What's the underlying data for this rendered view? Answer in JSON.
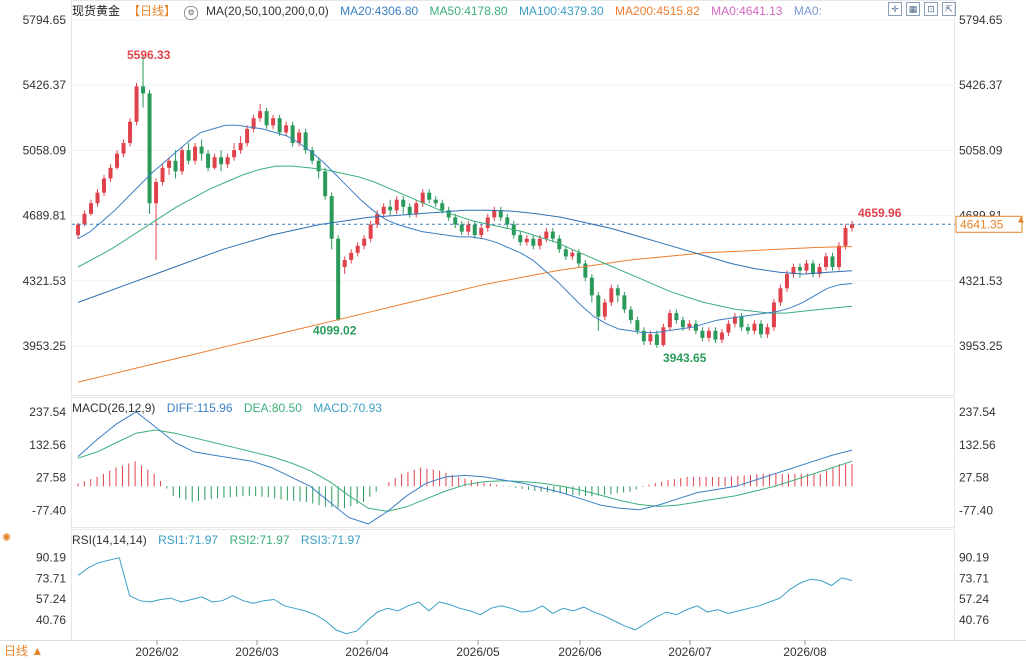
{
  "header": {
    "symbol": "现货黄金",
    "timeframe": "【日线】",
    "ma_params": "MA(20,50,100,200,0,0)",
    "ma20": "MA20:4306.80",
    "ma50": "MA50:4178.80",
    "ma100": "MA100:4379.30",
    "ma200": "MA200:4515.82",
    "ma0a": "MA0:4641.13",
    "ma0b": "MA0:"
  },
  "macd_header": {
    "label": "MACD(26,12,9)",
    "diff": "DIFF:115.96",
    "dea": "DEA:80.50",
    "macd": "MACD:70.93"
  },
  "rsi_header": {
    "label": "RSI(14,14,14)",
    "rsi1": "RSI1:71.97",
    "rsi2": "RSI2:71.97",
    "rsi3": "RSI3:71.97"
  },
  "timeframe_button": "日线 ▲",
  "colors": {
    "up": "#e0424b",
    "down": "#2a9a5b",
    "ma20": "#3b7fc4",
    "ma50": "#3bb07a",
    "ma100": "#2f6fb0",
    "ma200": "#ee7d2f",
    "dashed": "#3b7fc4"
  },
  "chart_data": {
    "type": "candlestick",
    "x_tick_labels": [
      "2026/02",
      "2026/03",
      "2026/04",
      "2026/05",
      "2026/06",
      "2026/07",
      "2026/08"
    ],
    "price_axis_ticks": [
      "5794.65",
      "5426.37",
      "5058.09",
      "4689.81",
      "4321.53",
      "3953.25"
    ],
    "price_range": [
      3700,
      5794.65
    ],
    "annotations": {
      "high": "5596.33",
      "low1": "4099.02",
      "low2": "3943.65",
      "last_high": "4659.96",
      "current_price": "4641.35"
    },
    "current_price": 4641.35,
    "candles": [
      [
        4580,
        4640,
        4560,
        4650
      ],
      [
        4640,
        4700,
        4630,
        4720
      ],
      [
        4700,
        4760,
        4690,
        4780
      ],
      [
        4760,
        4820,
        4740,
        4840
      ],
      [
        4820,
        4900,
        4800,
        4920
      ],
      [
        4900,
        4960,
        4880,
        4980
      ],
      [
        4960,
        5040,
        4950,
        5060
      ],
      [
        5040,
        5100,
        5020,
        5120
      ],
      [
        5100,
        5220,
        5080,
        5240
      ],
      [
        5220,
        5420,
        5200,
        5440
      ],
      [
        5420,
        5380,
        5300,
        5596.33
      ],
      [
        5380,
        4760,
        4700,
        5400
      ],
      [
        4760,
        4880,
        4440,
        4900
      ],
      [
        4880,
        4960,
        4860,
        4980
      ],
      [
        4960,
        5000,
        4920,
        5020
      ],
      [
        5000,
        4940,
        4900,
        5060
      ],
      [
        4940,
        5060,
        4920,
        5080
      ],
      [
        5060,
        5000,
        4980,
        5100
      ],
      [
        5000,
        5080,
        4980,
        5100
      ],
      [
        5080,
        5040,
        5000,
        5120
      ],
      [
        5040,
        4960,
        4940,
        5060
      ],
      [
        4960,
        5020,
        4950,
        5040
      ],
      [
        5020,
        4980,
        4940,
        5060
      ],
      [
        4980,
        5020,
        4960,
        5040
      ],
      [
        5020,
        5060,
        5000,
        5100
      ],
      [
        5060,
        5100,
        5040,
        5140
      ],
      [
        5100,
        5180,
        5080,
        5200
      ],
      [
        5180,
        5240,
        5160,
        5260
      ],
      [
        5240,
        5280,
        5220,
        5320
      ],
      [
        5280,
        5200,
        5180,
        5300
      ],
      [
        5200,
        5240,
        5180,
        5260
      ],
      [
        5240,
        5160,
        5140,
        5260
      ],
      [
        5160,
        5200,
        5140,
        5220
      ],
      [
        5200,
        5100,
        5080,
        5220
      ],
      [
        5100,
        5160,
        5080,
        5180
      ],
      [
        5160,
        5060,
        5040,
        5180
      ],
      [
        5060,
        5000,
        4980,
        5080
      ],
      [
        5000,
        4940,
        4900,
        5020
      ],
      [
        4940,
        4800,
        4780,
        4960
      ],
      [
        4800,
        4560,
        4500,
        4820
      ],
      [
        4560,
        4099.02,
        4099.02,
        4580
      ],
      [
        4400,
        4440,
        4360,
        4460
      ],
      [
        4440,
        4480,
        4420,
        4500
      ],
      [
        4480,
        4520,
        4460,
        4540
      ],
      [
        4520,
        4560,
        4500,
        4580
      ],
      [
        4560,
        4640,
        4540,
        4660
      ],
      [
        4640,
        4700,
        4620,
        4720
      ],
      [
        4700,
        4740,
        4680,
        4760
      ],
      [
        4740,
        4720,
        4690,
        4780
      ],
      [
        4720,
        4780,
        4700,
        4800
      ],
      [
        4780,
        4740,
        4700,
        4800
      ],
      [
        4740,
        4700,
        4680,
        4760
      ],
      [
        4700,
        4760,
        4680,
        4780
      ],
      [
        4760,
        4820,
        4740,
        4840
      ],
      [
        4820,
        4780,
        4760,
        4840
      ],
      [
        4780,
        4760,
        4740,
        4800
      ],
      [
        4760,
        4720,
        4700,
        4780
      ],
      [
        4720,
        4680,
        4660,
        4740
      ],
      [
        4680,
        4640,
        4620,
        4700
      ],
      [
        4640,
        4600,
        4580,
        4660
      ],
      [
        4600,
        4640,
        4580,
        4660
      ],
      [
        4640,
        4580,
        4560,
        4660
      ],
      [
        4580,
        4620,
        4560,
        4640
      ],
      [
        4620,
        4680,
        4600,
        4700
      ],
      [
        4680,
        4720,
        4660,
        4740
      ],
      [
        4720,
        4680,
        4660,
        4740
      ],
      [
        4680,
        4640,
        4620,
        4700
      ],
      [
        4640,
        4580,
        4560,
        4660
      ],
      [
        4580,
        4540,
        4520,
        4600
      ],
      [
        4540,
        4560,
        4520,
        4580
      ],
      [
        4560,
        4520,
        4500,
        4580
      ],
      [
        4520,
        4560,
        4500,
        4580
      ],
      [
        4560,
        4600,
        4540,
        4620
      ],
      [
        4600,
        4560,
        4540,
        4620
      ],
      [
        4560,
        4500,
        4480,
        4580
      ],
      [
        4500,
        4460,
        4440,
        4520
      ],
      [
        4460,
        4480,
        4440,
        4500
      ],
      [
        4480,
        4420,
        4400,
        4500
      ],
      [
        4420,
        4340,
        4320,
        4440
      ],
      [
        4340,
        4240,
        4200,
        4360
      ],
      [
        4240,
        4120,
        4040,
        4260
      ],
      [
        4120,
        4200,
        4100,
        4220
      ],
      [
        4200,
        4280,
        4180,
        4300
      ],
      [
        4280,
        4240,
        4200,
        4300
      ],
      [
        4240,
        4160,
        4140,
        4260
      ],
      [
        4160,
        4100,
        4080,
        4180
      ],
      [
        4100,
        4040,
        4020,
        4120
      ],
      [
        4040,
        3980,
        3960,
        4060
      ],
      [
        3980,
        4020,
        3960,
        4040
      ],
      [
        4020,
        3960,
        3943.65,
        4040
      ],
      [
        3960,
        4060,
        3950,
        4080
      ],
      [
        4060,
        4140,
        4040,
        4160
      ],
      [
        4140,
        4100,
        4080,
        4160
      ],
      [
        4100,
        4060,
        4040,
        4120
      ],
      [
        4060,
        4080,
        4040,
        4100
      ],
      [
        4080,
        4040,
        4020,
        4100
      ],
      [
        4040,
        4000,
        3980,
        4060
      ],
      [
        4000,
        4040,
        3980,
        4060
      ],
      [
        4040,
        3990,
        3970,
        4060
      ],
      [
        3990,
        4030,
        3970,
        4050
      ],
      [
        4030,
        4080,
        4010,
        4100
      ],
      [
        4080,
        4120,
        4060,
        4140
      ],
      [
        4120,
        4060,
        4040,
        4140
      ],
      [
        4060,
        4040,
        4020,
        4080
      ],
      [
        4040,
        4080,
        4020,
        4100
      ],
      [
        4080,
        4020,
        4000,
        4100
      ],
      [
        4020,
        4060,
        4000,
        4080
      ],
      [
        4060,
        4200,
        4040,
        4220
      ],
      [
        4200,
        4280,
        4180,
        4300
      ],
      [
        4280,
        4360,
        4260,
        4380
      ],
      [
        4360,
        4400,
        4340,
        4420
      ],
      [
        4400,
        4380,
        4340,
        4420
      ],
      [
        4380,
        4420,
        4360,
        4440
      ],
      [
        4420,
        4360,
        4340,
        4440
      ],
      [
        4360,
        4400,
        4340,
        4420
      ],
      [
        4400,
        4460,
        4380,
        4480
      ],
      [
        4460,
        4400,
        4380,
        4480
      ],
      [
        4400,
        4520,
        4380,
        4540
      ],
      [
        4520,
        4620,
        4500,
        4640
      ],
      [
        4620,
        4641.35,
        4600,
        4659.96
      ]
    ],
    "ma20_values": [
      4560,
      4600,
      4660,
      4720,
      4790,
      4860,
      4930,
      4990,
      5050,
      5110,
      5160,
      5180,
      5200,
      5200,
      5190,
      5180,
      5160,
      5140,
      5100,
      5050,
      4990,
      4920,
      4850,
      4780,
      4720,
      4670,
      4640,
      4620,
      4600,
      4590,
      4580,
      4570,
      4570,
      4560,
      4540,
      4510,
      4480,
      4440,
      4380,
      4320,
      4250,
      4180,
      4120,
      4080,
      4050,
      4040,
      4030,
      4030,
      4040,
      4050,
      4060,
      4080,
      4100,
      4110,
      4120,
      4130,
      4140,
      4150,
      4170,
      4200,
      4240,
      4280,
      4300,
      4306.8
    ],
    "ma50_values": [
      4400,
      4450,
      4500,
      4560,
      4620,
      4680,
      4740,
      4790,
      4840,
      4880,
      4920,
      4950,
      4970,
      4970,
      4960,
      4950,
      4930,
      4910,
      4880,
      4840,
      4800,
      4760,
      4720,
      4690,
      4660,
      4640,
      4620,
      4600,
      4570,
      4540,
      4500,
      4460,
      4420,
      4380,
      4340,
      4300,
      4260,
      4230,
      4200,
      4180,
      4160,
      4150,
      4140,
      4140,
      4150,
      4160,
      4170,
      4178.8
    ],
    "ma100_values": [
      4200,
      4250,
      4300,
      4350,
      4400,
      4450,
      4500,
      4540,
      4580,
      4610,
      4640,
      4660,
      4680,
      4690,
      4700,
      4710,
      4720,
      4720,
      4715,
      4700,
      4680,
      4650,
      4620,
      4580,
      4540,
      4500,
      4460,
      4420,
      4390,
      4370,
      4360,
      4370,
      4379.3
    ],
    "ma200_values": [
      3750,
      3800,
      3850,
      3900,
      3950,
      4000,
      4050,
      4100,
      4150,
      4200,
      4250,
      4300,
      4340,
      4380,
      4410,
      4440,
      4460,
      4480,
      4490,
      4500,
      4510,
      4515.82
    ],
    "macd_axis_ticks": [
      "237.54",
      "132.56",
      "27.58",
      "-77.40"
    ],
    "macd_range": [
      -130,
      260
    ],
    "macd_diff": [
      95,
      150,
      200,
      238,
      190,
      140,
      110,
      100,
      90,
      80,
      60,
      30,
      0,
      -50,
      -100,
      -120,
      -80,
      -30,
      10,
      30,
      35,
      30,
      20,
      10,
      -5,
      -20,
      -40,
      -60,
      -70,
      -75,
      -60,
      -40,
      -20,
      -10,
      0,
      20,
      40,
      60,
      80,
      100,
      115.96
    ],
    "macd_dea": [
      90,
      110,
      140,
      170,
      180,
      170,
      155,
      140,
      125,
      110,
      95,
      75,
      50,
      15,
      -30,
      -70,
      -80,
      -65,
      -40,
      -15,
      5,
      15,
      18,
      15,
      10,
      0,
      -12,
      -28,
      -45,
      -58,
      -64,
      -60,
      -50,
      -40,
      -30,
      -15,
      0,
      20,
      40,
      60,
      80.5
    ],
    "macd_hist": [
      10,
      30,
      60,
      80,
      40,
      -30,
      -50,
      -40,
      -35,
      -30,
      -35,
      -45,
      -50,
      -65,
      -70,
      -50,
      0,
      40,
      60,
      50,
      30,
      15,
      5,
      -5,
      -15,
      -20,
      -28,
      -32,
      -25,
      -17,
      5,
      20,
      30,
      30,
      30,
      35,
      40,
      40,
      40,
      40,
      70.93
    ],
    "rsi_axis_ticks": [
      "90.19",
      "73.71",
      "57.24",
      "40.76"
    ],
    "rsi_range": [
      25,
      100
    ],
    "rsi_values": [
      76,
      82,
      86,
      88,
      90,
      60,
      56,
      55,
      57,
      58,
      55,
      57,
      59,
      55,
      56,
      60,
      56,
      54,
      56,
      57,
      52,
      50,
      48,
      45,
      40,
      33,
      30,
      32,
      40,
      47,
      50,
      48,
      52,
      55,
      48,
      55,
      53,
      50,
      48,
      45,
      50,
      52,
      50,
      47,
      48,
      52,
      46,
      50,
      48,
      51,
      47,
      44,
      40,
      36,
      33,
      38,
      43,
      47,
      45,
      49,
      52,
      47,
      49,
      46,
      48,
      50,
      52,
      55,
      58,
      65,
      70,
      73,
      72,
      68,
      74,
      71.97
    ]
  }
}
